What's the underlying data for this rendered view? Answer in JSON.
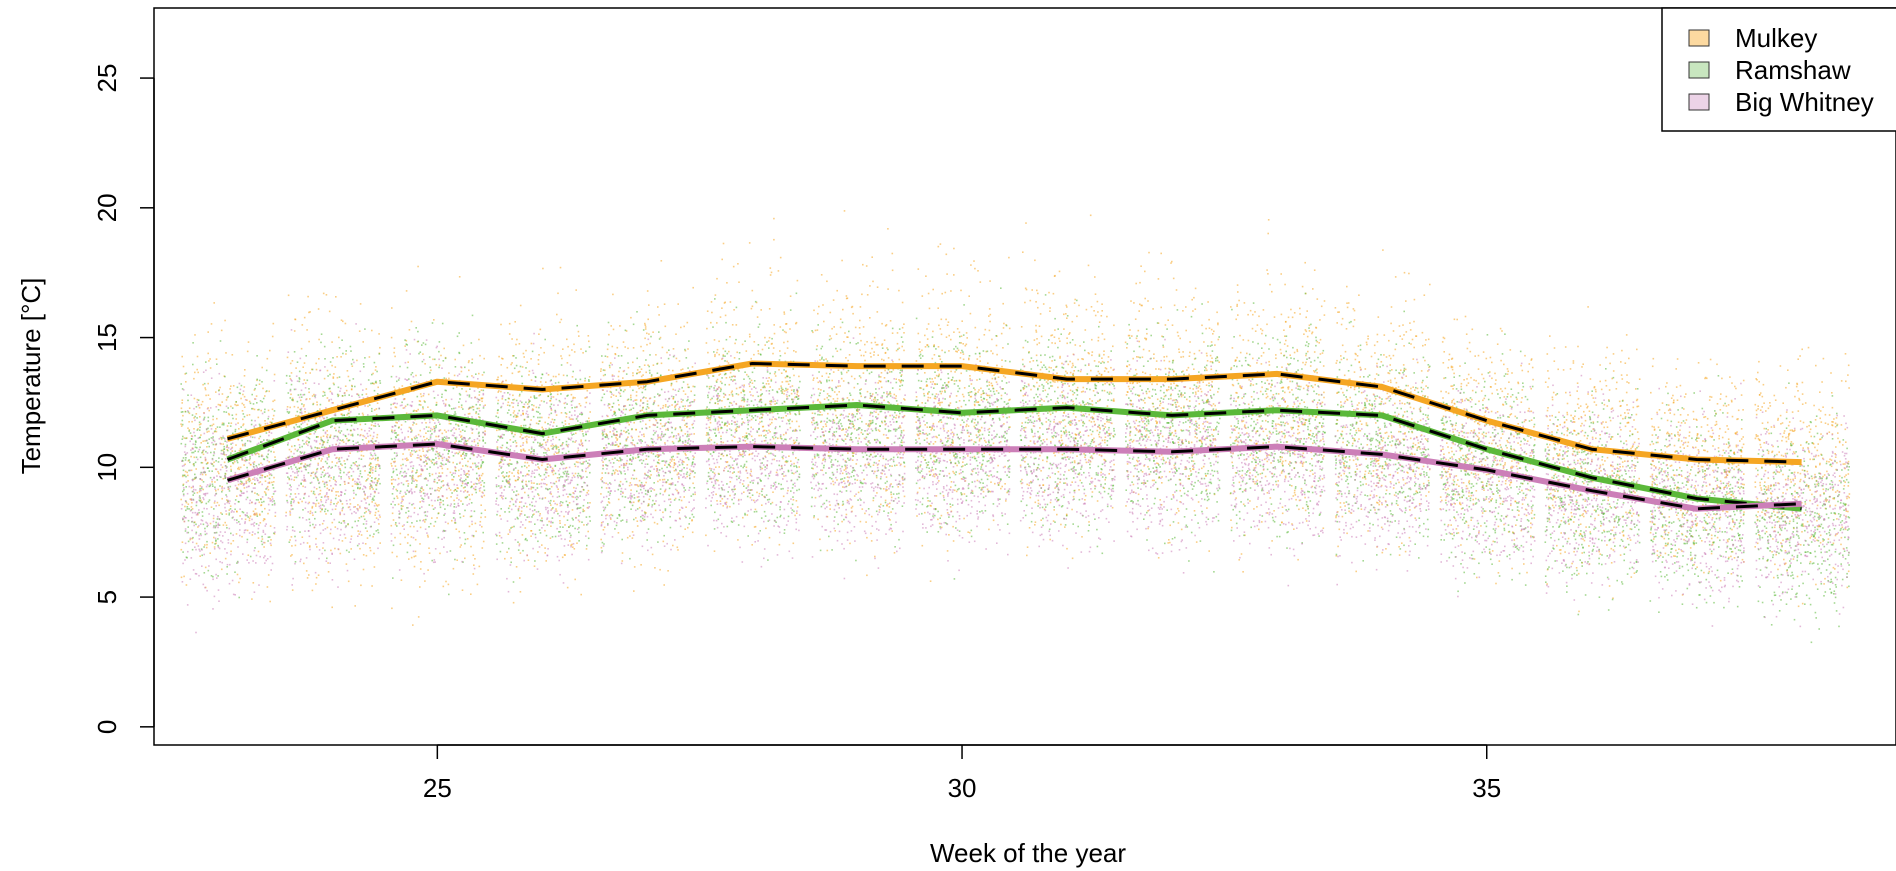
{
  "chart_data": {
    "type": "line",
    "xlabel": "Week of the year",
    "ylabel": "Temperature [°C]",
    "xlim": [
      22.3,
      38.9
    ],
    "ylim": [
      -0.7,
      27.7
    ],
    "x_ticks": [
      25,
      30,
      35
    ],
    "y_ticks": [
      0,
      5,
      10,
      15,
      20,
      25
    ],
    "legend_position": "top-right",
    "grid": false,
    "x": [
      23,
      24,
      25,
      26,
      27,
      28,
      29,
      30,
      31,
      32,
      33,
      34,
      35,
      36,
      37,
      38
    ],
    "series": [
      {
        "name": "Mulkey",
        "color": "#f5a623",
        "fill": "#fcd9a0",
        "values": [
          11.1,
          12.2,
          13.3,
          13.0,
          13.3,
          14.0,
          13.9,
          13.9,
          13.4,
          13.4,
          13.6,
          13.1,
          11.8,
          10.7,
          10.3,
          10.2
        ],
        "cloud": [
          [
            10.5,
            4.0
          ],
          [
            10.5,
            4.5
          ],
          [
            10.5,
            4.5
          ],
          [
            11.0,
            4.3
          ],
          [
            11.5,
            4.3
          ],
          [
            12.5,
            4.5
          ],
          [
            12.5,
            4.5
          ],
          [
            12.5,
            4.5
          ],
          [
            12.5,
            4.3
          ],
          [
            12.5,
            4.3
          ],
          [
            12.5,
            4.5
          ],
          [
            12.0,
            4.3
          ],
          [
            11.0,
            3.8
          ],
          [
            10.5,
            3.8
          ],
          [
            10.0,
            3.6
          ],
          [
            10.0,
            3.6
          ]
        ]
      },
      {
        "name": "Ramshaw",
        "color": "#5bb83a",
        "fill": "#c8e6bf",
        "values": [
          10.3,
          11.8,
          12.0,
          11.3,
          12.0,
          12.2,
          12.4,
          12.1,
          12.3,
          12.0,
          12.2,
          12.0,
          10.7,
          9.6,
          8.8,
          8.4
        ],
        "cloud": [
          [
            10.0,
            3.3
          ],
          [
            11.0,
            3.5
          ],
          [
            11.0,
            3.5
          ],
          [
            10.5,
            3.3
          ],
          [
            11.0,
            3.3
          ],
          [
            11.5,
            3.3
          ],
          [
            11.5,
            3.3
          ],
          [
            11.5,
            3.3
          ],
          [
            11.5,
            3.3
          ],
          [
            11.5,
            3.3
          ],
          [
            11.5,
            3.3
          ],
          [
            11.0,
            3.3
          ],
          [
            10.0,
            3.3
          ],
          [
            9.0,
            3.2
          ],
          [
            8.5,
            3.2
          ],
          [
            8.0,
            3.2
          ]
        ]
      },
      {
        "name": "Big Whitney",
        "color": "#cc7fb8",
        "fill": "#ecd3e7",
        "values": [
          9.5,
          10.7,
          10.9,
          10.3,
          10.7,
          10.8,
          10.7,
          10.7,
          10.7,
          10.6,
          10.8,
          10.5,
          9.9,
          9.1,
          8.4,
          8.6
        ],
        "cloud": [
          [
            9.0,
            3.5
          ],
          [
            10.0,
            3.3
          ],
          [
            10.5,
            3.3
          ],
          [
            10.0,
            3.3
          ],
          [
            10.5,
            3.0
          ],
          [
            10.5,
            3.0
          ],
          [
            10.5,
            3.0
          ],
          [
            10.5,
            3.0
          ],
          [
            10.5,
            3.0
          ],
          [
            10.5,
            3.0
          ],
          [
            10.5,
            3.0
          ],
          [
            10.0,
            3.0
          ],
          [
            9.5,
            3.0
          ],
          [
            9.0,
            3.0
          ],
          [
            8.5,
            3.0
          ],
          [
            8.5,
            3.0
          ]
        ]
      }
    ],
    "mean_line_style": "black dashed over series color"
  }
}
